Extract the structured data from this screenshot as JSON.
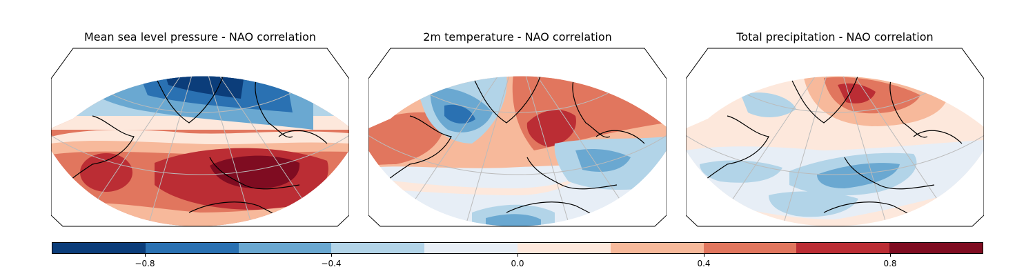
{
  "panels": [
    {
      "title": "Mean sea level pressure - NAO correlation",
      "field": "msl"
    },
    {
      "title": "2m temperature - NAO correlation",
      "field": "t2m"
    },
    {
      "title": "Total precipitation - NAO correlation",
      "field": "tp"
    }
  ],
  "colorbar": {
    "levels": [
      -1.0,
      -0.8,
      -0.6,
      -0.4,
      -0.2,
      0.0,
      0.2,
      0.4,
      0.6,
      0.8,
      1.0
    ],
    "colors": [
      "#0b3d7a",
      "#2a71b2",
      "#6aa8d1",
      "#b2d4e8",
      "#e7eef6",
      "#fde8dc",
      "#f7b99b",
      "#e1765e",
      "#bb2d34",
      "#7f0c21"
    ],
    "ticks": [
      -0.8,
      -0.4,
      0.0,
      0.4,
      0.8
    ],
    "tick_labels": [
      "−0.8",
      "−0.4",
      "0.0",
      "0.4",
      "0.8"
    ]
  }
}
